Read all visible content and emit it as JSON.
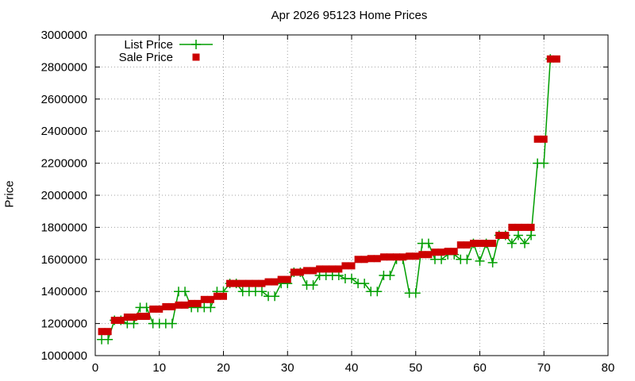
{
  "chart_data": {
    "type": "line",
    "title": "Apr 2026 95123 Home Prices",
    "xlabel": "",
    "ylabel": "Price",
    "xlim": [
      0,
      80
    ],
    "ylim": [
      1000000,
      3000000
    ],
    "xticks": [
      0,
      10,
      20,
      30,
      40,
      50,
      60,
      70,
      80
    ],
    "yticks": [
      1000000,
      1200000,
      1400000,
      1600000,
      1800000,
      2000000,
      2200000,
      2400000,
      2600000,
      2800000,
      3000000
    ],
    "grid": true,
    "legend_position": "top-left",
    "series": [
      {
        "name": "List Price",
        "style": "linespoints",
        "marker": "plus",
        "color": "#009e00",
        "x": [
          1,
          2,
          3,
          4,
          5,
          6,
          7,
          8,
          9,
          10,
          11,
          12,
          13,
          14,
          15,
          16,
          17,
          18,
          19,
          20,
          21,
          22,
          23,
          24,
          25,
          26,
          27,
          28,
          29,
          30,
          31,
          32,
          33,
          34,
          35,
          36,
          37,
          38,
          39,
          40,
          41,
          42,
          43,
          44,
          45,
          46,
          47,
          48,
          49,
          50,
          51,
          52,
          53,
          54,
          55,
          56,
          57,
          58,
          59,
          60,
          61,
          62,
          63,
          64,
          65,
          66,
          67,
          68,
          69,
          70,
          71
        ],
        "values": [
          1100000,
          1100000,
          1220000,
          1220000,
          1200000,
          1200000,
          1300000,
          1300000,
          1200000,
          1200000,
          1200000,
          1200000,
          1400000,
          1400000,
          1300000,
          1300000,
          1300000,
          1300000,
          1400000,
          1400000,
          1450000,
          1450000,
          1400000,
          1400000,
          1400000,
          1400000,
          1370000,
          1370000,
          1450000,
          1450000,
          1520000,
          1520000,
          1440000,
          1440000,
          1500000,
          1500000,
          1500000,
          1500000,
          1480000,
          1480000,
          1450000,
          1450000,
          1400000,
          1400000,
          1500000,
          1500000,
          1600000,
          1600000,
          1390000,
          1390000,
          1700000,
          1700000,
          1600000,
          1600000,
          1630000,
          1630000,
          1600000,
          1600000,
          1700000,
          1590000,
          1700000,
          1580000,
          1750000,
          1750000,
          1700000,
          1750000,
          1700000,
          1750000,
          2200000,
          2200000,
          2850000
        ]
      },
      {
        "name": "Sale Price",
        "style": "points",
        "marker": "square",
        "color": "#cc0000",
        "x": [
          1,
          2,
          3,
          4,
          5,
          6,
          7,
          8,
          9,
          10,
          11,
          12,
          13,
          14,
          15,
          16,
          17,
          18,
          19,
          20,
          21,
          22,
          23,
          24,
          25,
          26,
          27,
          28,
          29,
          30,
          31,
          32,
          33,
          34,
          35,
          36,
          37,
          38,
          39,
          40,
          41,
          42,
          43,
          44,
          45,
          46,
          47,
          48,
          49,
          50,
          51,
          52,
          53,
          54,
          55,
          56,
          57,
          58,
          59,
          60,
          61,
          62,
          63,
          64,
          65,
          66,
          67,
          68,
          69,
          70,
          71,
          72
        ],
        "values": [
          1150000,
          1150000,
          1220000,
          1220000,
          1240000,
          1240000,
          1245000,
          1245000,
          1290000,
          1290000,
          1305000,
          1305000,
          1315000,
          1315000,
          1325000,
          1325000,
          1350000,
          1350000,
          1370000,
          1370000,
          1450000,
          1450000,
          1450000,
          1450000,
          1450000,
          1450000,
          1460000,
          1460000,
          1475000,
          1475000,
          1520000,
          1520000,
          1530000,
          1530000,
          1540000,
          1540000,
          1540000,
          1540000,
          1560000,
          1560000,
          1600000,
          1600000,
          1605000,
          1605000,
          1615000,
          1615000,
          1615000,
          1615000,
          1620000,
          1620000,
          1630000,
          1630000,
          1645000,
          1645000,
          1650000,
          1650000,
          1690000,
          1690000,
          1700000,
          1700000,
          1700000,
          1700000,
          1750000,
          1750000,
          1800000,
          1800000,
          1800000,
          1800000,
          2350000,
          2350000,
          2850000,
          2850000
        ]
      }
    ]
  }
}
